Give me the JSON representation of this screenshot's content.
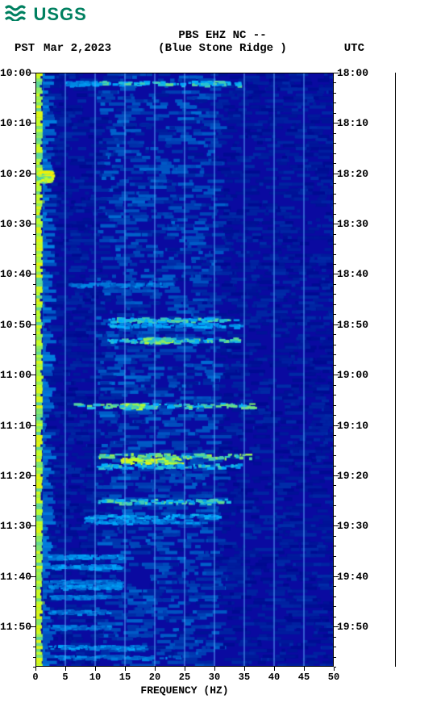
{
  "logo": {
    "text": "USGS",
    "color": "#008060"
  },
  "header": {
    "tz_left": "PST",
    "date": "Mar 2,2023",
    "station_line1": "PBS EHZ NC --",
    "station_line2": "(Blue Stone Ridge )",
    "tz_right": "UTC"
  },
  "plot": {
    "type": "spectrogram",
    "xlabel": "FREQUENCY (HZ)",
    "xlim": [
      0,
      50
    ],
    "xtick_step": 5,
    "ylim_minutes": [
      0,
      118
    ],
    "left_tick_start": "10:00",
    "right_tick_start": "18:00",
    "major_tick_interval_min": 10,
    "minor_tick_interval_min": 2,
    "n_major": 12,
    "left_labels": [
      "10:00",
      "10:10",
      "10:20",
      "10:30",
      "10:40",
      "10:50",
      "11:00",
      "11:10",
      "11:20",
      "11:30",
      "11:40",
      "11:50"
    ],
    "right_labels": [
      "18:00",
      "18:10",
      "18:20",
      "18:30",
      "18:40",
      "18:50",
      "19:00",
      "19:10",
      "19:20",
      "19:30",
      "19:40",
      "19:50"
    ],
    "background_color": "#0a0aa0",
    "grid_color": "#5ea8ff",
    "colormap": {
      "low": "#00008b",
      "mid": "#00b0ff",
      "high": "#b8ff30",
      "peak": "#ffeb00"
    },
    "edge_band_hz": [
      0,
      1.2
    ],
    "edge_band_color": "#d6ff2a",
    "vertical_gridlines_hz": [
      5,
      10,
      15,
      20,
      25,
      30,
      35,
      40,
      45
    ],
    "events": [
      {
        "t": 2,
        "f0": 10,
        "f1": 34,
        "intensity": 0.55
      },
      {
        "t": 2,
        "f0": 5,
        "f1": 10,
        "intensity": 0.35
      },
      {
        "t": 20,
        "f0": 0,
        "f1": 2,
        "intensity": 0.95
      },
      {
        "t": 21,
        "f0": 0,
        "f1": 2,
        "intensity": 0.85
      },
      {
        "t": 42,
        "f0": 5,
        "f1": 22,
        "intensity": 0.3
      },
      {
        "t": 49,
        "f0": 12,
        "f1": 34,
        "intensity": 0.55
      },
      {
        "t": 50,
        "f0": 12,
        "f1": 34,
        "intensity": 0.4
      },
      {
        "t": 53,
        "f0": 12,
        "f1": 34,
        "intensity": 0.55
      },
      {
        "t": 53,
        "f0": 18,
        "f1": 22,
        "intensity": 0.7
      },
      {
        "t": 66,
        "f0": 6,
        "f1": 36,
        "intensity": 0.6
      },
      {
        "t": 66,
        "f0": 14,
        "f1": 18,
        "intensity": 0.7
      },
      {
        "t": 76,
        "f0": 10,
        "f1": 36,
        "intensity": 0.7
      },
      {
        "t": 77,
        "f0": 14,
        "f1": 24,
        "intensity": 0.85
      },
      {
        "t": 78,
        "f0": 10,
        "f1": 34,
        "intensity": 0.5
      },
      {
        "t": 85,
        "f0": 10,
        "f1": 32,
        "intensity": 0.55
      },
      {
        "t": 88,
        "f0": 8,
        "f1": 30,
        "intensity": 0.4
      },
      {
        "t": 89,
        "f0": 8,
        "f1": 28,
        "intensity": 0.35
      },
      {
        "t": 96,
        "f0": 2,
        "f1": 14,
        "intensity": 0.35
      },
      {
        "t": 98,
        "f0": 2,
        "f1": 14,
        "intensity": 0.35
      },
      {
        "t": 101,
        "f0": 2,
        "f1": 14,
        "intensity": 0.3
      },
      {
        "t": 102,
        "f0": 2,
        "f1": 14,
        "intensity": 0.35
      },
      {
        "t": 104,
        "f0": 2,
        "f1": 12,
        "intensity": 0.3
      },
      {
        "t": 107,
        "f0": 2,
        "f1": 12,
        "intensity": 0.3
      },
      {
        "t": 110,
        "f0": 2,
        "f1": 12,
        "intensity": 0.3
      },
      {
        "t": 114,
        "f0": 2,
        "f1": 18,
        "intensity": 0.35
      },
      {
        "t": 116,
        "f0": 2,
        "f1": 24,
        "intensity": 0.3
      }
    ],
    "low_freq_texture_rows": 200,
    "mid_band_hz": [
      10,
      30
    ],
    "mid_band_boost": 0.15
  },
  "label_fontsize": 13,
  "tick_fontsize": 12
}
